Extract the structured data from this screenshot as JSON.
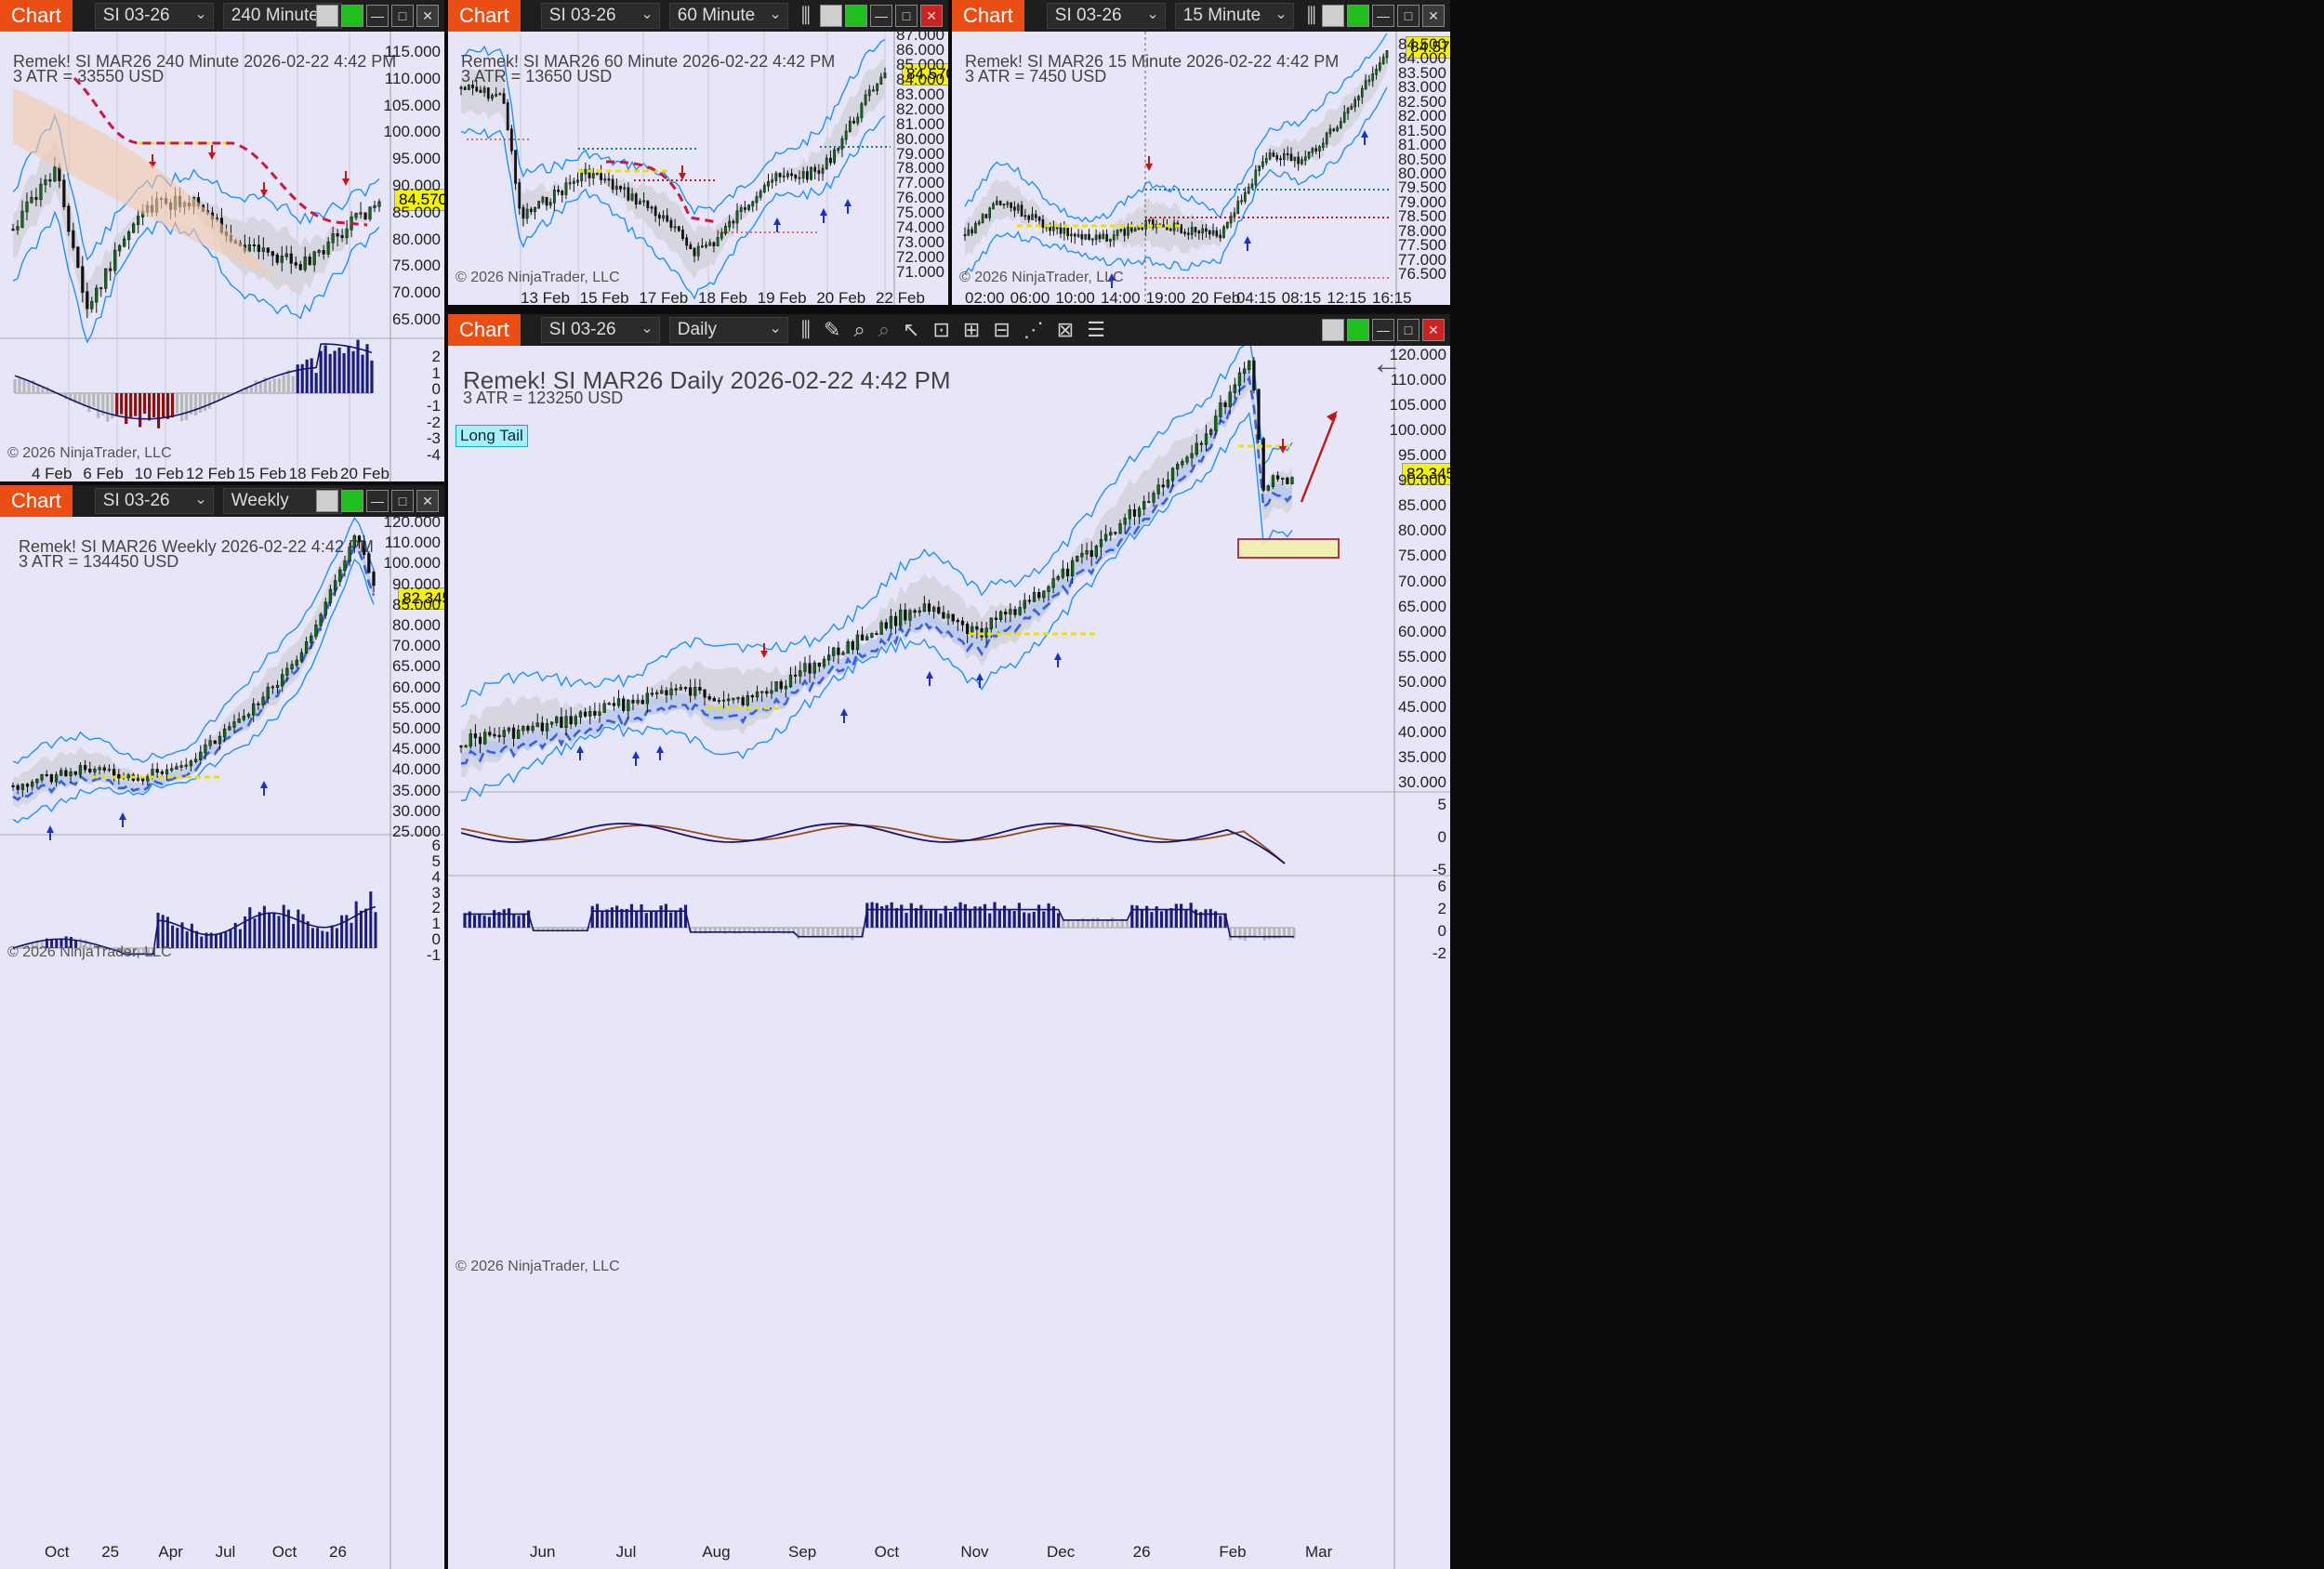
{
  "app": {
    "tab_label": "Chart",
    "instrument": "SI 03-26",
    "copyright": "© 2026 NinjaTrader, LLC"
  },
  "colors": {
    "bg": "#e6e6f8",
    "bull": "#0e6b16",
    "bear": "#800000",
    "accent": "#ea4e14",
    "band": "#1e90ff",
    "price_tag": "#f5f500"
  },
  "w240": {
    "period": "240 Minute",
    "header": "Remek!  SI MAR26  240 Minute  2026-02-22 4:42 PM",
    "atr": "3 ATR = 33550 USD",
    "price": "84.570",
    "yticks": [
      "115.000",
      "110.000",
      "105.000",
      "100.000",
      "95.000",
      "90.000",
      "85.000",
      "80.000",
      "75.000",
      "70.000",
      "65.000"
    ],
    "sub_ticks": [
      "2",
      "1",
      "0",
      "-1",
      "-2",
      "-3",
      "-4"
    ],
    "xlabels": [
      "4 Feb",
      "6 Feb",
      "10 Feb",
      "12 Feb",
      "15 Feb",
      "18 Feb",
      "20 Feb"
    ]
  },
  "w60": {
    "period": "60 Minute",
    "header": "Remek!  SI MAR26  60 Minute  2026-02-22 4:42 PM",
    "atr": "3 ATR = 13650 USD",
    "price": "84.570",
    "yticks": [
      "87.000",
      "86.000",
      "85.000",
      "84.000",
      "83.000",
      "82.000",
      "81.000",
      "80.000",
      "79.000",
      "78.000",
      "77.000",
      "76.000",
      "75.000",
      "74.000",
      "73.000",
      "72.000",
      "71.000"
    ],
    "xlabels": [
      "13 Feb",
      "15 Feb",
      "17 Feb",
      "18 Feb",
      "19 Feb",
      "20 Feb",
      "22 Feb"
    ]
  },
  "w15": {
    "period": "15 Minute",
    "header": "Remek!  SI MAR26  15 Minute  2026-02-22 4:42 PM",
    "atr": "3 ATR = 7450 USD",
    "price": "84.570",
    "yticks": [
      "84.500",
      "84.000",
      "83.500",
      "83.000",
      "82.500",
      "82.000",
      "81.500",
      "81.000",
      "80.500",
      "80.000",
      "79.500",
      "79.000",
      "78.500",
      "78.000",
      "77.500",
      "77.000",
      "76.500"
    ],
    "xlabels": [
      "02:00",
      "06:00",
      "10:00",
      "14:00",
      "19:00",
      "20 Feb",
      "04:15",
      "08:15",
      "12:15",
      "16:15"
    ]
  },
  "wW": {
    "period": "Weekly",
    "header": "Remek!  SI MAR26  Weekly  2026-02-22 4:42 PM",
    "atr": "3 ATR = 134450 USD",
    "price": "82.345",
    "yticks": [
      "120.000",
      "110.000",
      "100.000",
      "90.000",
      "85.000",
      "80.000",
      "70.000",
      "65.000",
      "60.000",
      "55.000",
      "50.000",
      "45.000",
      "40.000",
      "35.000",
      "30.000",
      "25.000"
    ],
    "sub_ticks": [
      "6",
      "5",
      "4",
      "3",
      "2",
      "1",
      "0",
      "-1"
    ],
    "xlabels": [
      "Oct",
      "25",
      "Apr",
      "Jul",
      "Oct",
      "26"
    ]
  },
  "wD": {
    "period": "Daily",
    "header": "Remek!  SI MAR26  Daily  2026-02-22 4:42 PM",
    "atr": "3 ATR = 123250 USD",
    "price": "82.345",
    "long_tail": "Long Tail",
    "yticks": [
      "120.000",
      "110.000",
      "105.000",
      "100.000",
      "95.000",
      "90.000",
      "85.000",
      "80.000",
      "75.000",
      "70.000",
      "65.000",
      "60.000",
      "55.000",
      "50.000",
      "45.000",
      "40.000",
      "35.000",
      "30.000"
    ],
    "osc1_ticks": [
      "5",
      "0",
      "-5"
    ],
    "osc2_ticks": [
      "6",
      "2",
      "0",
      "-2"
    ],
    "xlabels": [
      "Jun",
      "Jul",
      "Aug",
      "Sep",
      "Oct",
      "Nov",
      "Dec",
      "26",
      "Feb",
      "Mar"
    ]
  }
}
